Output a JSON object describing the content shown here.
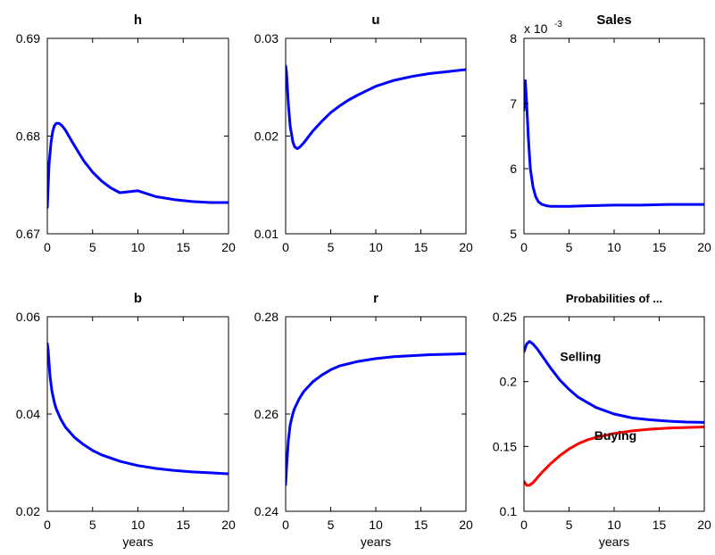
{
  "chart_data": [
    {
      "type": "line",
      "title": "h",
      "xlabel": "",
      "xlim": [
        0,
        20
      ],
      "ylim": [
        0.67,
        0.69
      ],
      "xticks": [
        0,
        5,
        10,
        15,
        20
      ],
      "yticks": [
        0.67,
        0.68,
        0.69
      ],
      "ytick_labels": [
        "0.67",
        "0.68",
        "0.69"
      ],
      "series": [
        {
          "color": "#0000ff",
          "x": [
            0,
            0.2,
            0.4,
            0.6,
            0.8,
            1.0,
            1.3,
            1.6,
            2,
            2.5,
            3,
            4,
            5,
            6,
            7,
            8,
            10,
            12,
            14,
            16,
            18,
            20
          ],
          "y": [
            0.6727,
            0.6772,
            0.6793,
            0.6805,
            0.6811,
            0.6813,
            0.6813,
            0.6811,
            0.6806,
            0.6798,
            0.679,
            0.6775,
            0.6763,
            0.6754,
            0.6747,
            0.6742,
            0.6744,
            0.6738,
            0.6735,
            0.6733,
            0.6732,
            0.6732
          ]
        }
      ]
    },
    {
      "type": "line",
      "title": "u",
      "xlabel": "",
      "xlim": [
        0,
        20
      ],
      "ylim": [
        0.01,
        0.03
      ],
      "xticks": [
        0,
        5,
        10,
        15,
        20
      ],
      "yticks": [
        0.01,
        0.02,
        0.03
      ],
      "ytick_labels": [
        "0.01",
        "0.02",
        "0.03"
      ],
      "series": [
        {
          "color": "#0000ff",
          "x": [
            0,
            0.1,
            0.3,
            0.5,
            0.8,
            1.0,
            1.3,
            1.6,
            2,
            2.5,
            3,
            4,
            5,
            6,
            7,
            8,
            10,
            12,
            14,
            16,
            18,
            20
          ],
          "y": [
            0.0272,
            0.0265,
            0.0233,
            0.021,
            0.0194,
            0.0189,
            0.0187,
            0.0189,
            0.0193,
            0.0199,
            0.0205,
            0.0215,
            0.0224,
            0.0231,
            0.0237,
            0.0242,
            0.0251,
            0.0257,
            0.0261,
            0.0264,
            0.0266,
            0.0268
          ]
        }
      ]
    },
    {
      "type": "line",
      "title": "Sales",
      "xlabel": "",
      "scale_label": "x 10",
      "scale_exponent": "-3",
      "xlim": [
        0,
        20
      ],
      "ylim": [
        5,
        8
      ],
      "xticks": [
        0,
        5,
        10,
        15,
        20
      ],
      "yticks": [
        5,
        6,
        7,
        8
      ],
      "ytick_labels": [
        "5",
        "6",
        "7",
        "8"
      ],
      "series": [
        {
          "color": "#0000ff",
          "x": [
            0,
            0.15,
            0.3,
            0.5,
            0.7,
            1.0,
            1.3,
            1.6,
            2,
            2.5,
            3,
            4,
            5,
            7,
            10,
            13,
            16,
            20
          ],
          "y": [
            6.9,
            7.35,
            7.0,
            6.45,
            6.0,
            5.72,
            5.57,
            5.49,
            5.45,
            5.43,
            5.42,
            5.42,
            5.42,
            5.43,
            5.44,
            5.44,
            5.45,
            5.45
          ]
        }
      ]
    },
    {
      "type": "line",
      "title": "b",
      "xlabel": "years",
      "xlim": [
        0,
        20
      ],
      "ylim": [
        0.02,
        0.06
      ],
      "xticks": [
        0,
        5,
        10,
        15,
        20
      ],
      "yticks": [
        0.02,
        0.04,
        0.06
      ],
      "ytick_labels": [
        "0.02",
        "0.04",
        "0.06"
      ],
      "series": [
        {
          "color": "#0000ff",
          "x": [
            0,
            0.1,
            0.3,
            0.5,
            0.8,
            1.0,
            1.5,
            2,
            3,
            4,
            5,
            6,
            8,
            10,
            12,
            14,
            16,
            18,
            20
          ],
          "y": [
            0.0545,
            0.053,
            0.0478,
            0.0448,
            0.0422,
            0.041,
            0.0389,
            0.0373,
            0.0352,
            0.0337,
            0.0325,
            0.0316,
            0.0303,
            0.0294,
            0.0288,
            0.0284,
            0.0281,
            0.0279,
            0.0277
          ]
        }
      ]
    },
    {
      "type": "line",
      "title": "r",
      "xlabel": "years",
      "xlim": [
        0,
        20
      ],
      "ylim": [
        0.24,
        0.28
      ],
      "xticks": [
        0,
        5,
        10,
        15,
        20
      ],
      "yticks": [
        0.24,
        0.26,
        0.28
      ],
      "ytick_labels": [
        "0.24",
        "0.26",
        "0.28"
      ],
      "series": [
        {
          "color": "#0000ff",
          "x": [
            0,
            0.1,
            0.3,
            0.5,
            0.8,
            1.0,
            1.5,
            2,
            3,
            4,
            5,
            6,
            8,
            10,
            12,
            14,
            16,
            18,
            20
          ],
          "y": [
            0.2455,
            0.249,
            0.2545,
            0.2578,
            0.2601,
            0.2612,
            0.2631,
            0.2646,
            0.2666,
            0.268,
            0.2691,
            0.2699,
            0.2708,
            0.2714,
            0.2718,
            0.272,
            0.2722,
            0.2723,
            0.2724
          ]
        }
      ]
    },
    {
      "type": "line",
      "title": "Probabilities of ...",
      "xlabel": "years",
      "xlim": [
        0,
        20
      ],
      "ylim": [
        0.1,
        0.25
      ],
      "xticks": [
        0,
        5,
        10,
        15,
        20
      ],
      "yticks": [
        0.1,
        0.15,
        0.2,
        0.25
      ],
      "ytick_labels": [
        "0.1",
        "0.15",
        "0.2",
        "0.25"
      ],
      "annotations": [
        {
          "text": "Selling",
          "x": 4,
          "y": 0.216
        },
        {
          "text": "Buying",
          "x": 7.8,
          "y": 0.155
        }
      ],
      "series": [
        {
          "name": "Selling",
          "color": "#0000ff",
          "x": [
            0,
            0.3,
            0.6,
            1.0,
            1.5,
            2,
            3,
            4,
            5,
            6,
            7,
            8,
            10,
            12,
            14,
            16,
            18,
            20
          ],
          "y": [
            0.223,
            0.229,
            0.231,
            0.229,
            0.225,
            0.22,
            0.21,
            0.201,
            0.194,
            0.188,
            0.184,
            0.18,
            0.175,
            0.172,
            0.1705,
            0.1695,
            0.1688,
            0.1685
          ]
        },
        {
          "name": "Buying",
          "color": "#ff0000",
          "x": [
            0,
            0.3,
            0.6,
            1.0,
            1.5,
            2,
            3,
            4,
            5,
            6,
            7,
            8,
            10,
            12,
            14,
            16,
            18,
            20
          ],
          "y": [
            0.123,
            0.12,
            0.12,
            0.122,
            0.126,
            0.13,
            0.137,
            0.143,
            0.148,
            0.152,
            0.155,
            0.157,
            0.16,
            0.162,
            0.1633,
            0.1641,
            0.1646,
            0.165
          ]
        }
      ]
    }
  ]
}
